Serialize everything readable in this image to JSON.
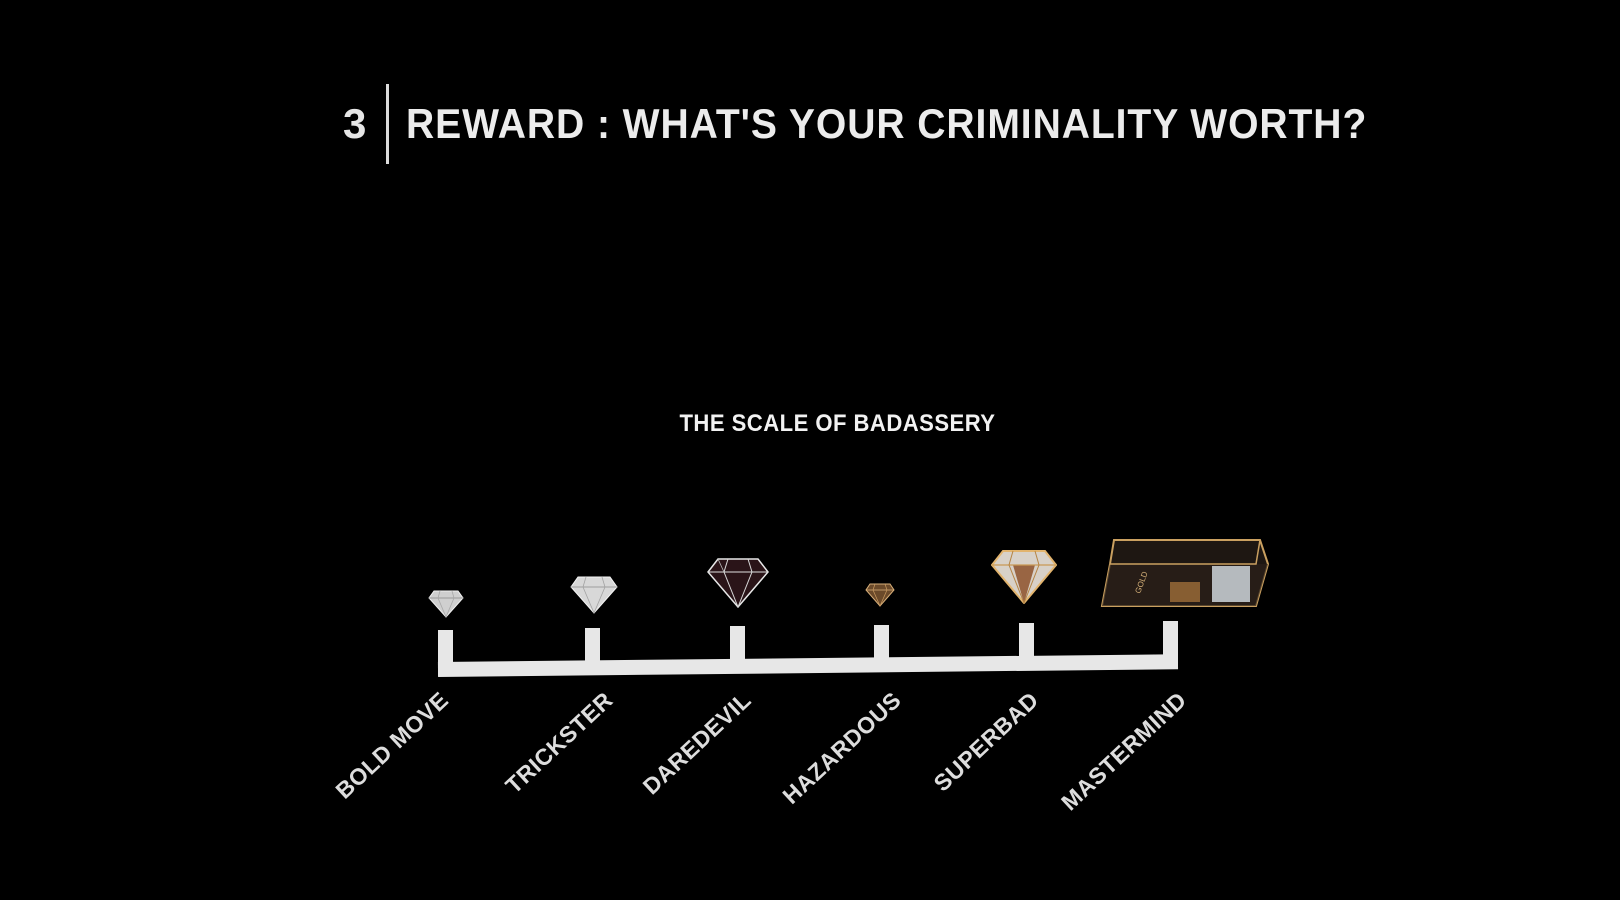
{
  "header": {
    "step_number": "3",
    "title": "REWARD : WHAT'S YOUR CRIMINALITY WORTH?"
  },
  "scale": {
    "title": "THE SCALE OF BADASSERY",
    "tiers": [
      {
        "label": "BOLD MOVE",
        "reward_icon": "small-silver-diamond-icon"
      },
      {
        "label": "TRICKSTER",
        "reward_icon": "silver-diamond-icon"
      },
      {
        "label": "DAREDEVIL",
        "reward_icon": "black-diamond-icon"
      },
      {
        "label": "HAZARDOUS",
        "reward_icon": "small-gold-diamond-icon"
      },
      {
        "label": "SUPERBAD",
        "reward_icon": "gold-diamond-icon"
      },
      {
        "label": "MASTERMIND",
        "reward_icon": "gold-bar-icon"
      }
    ]
  },
  "colors": {
    "background": "#000000",
    "text": "#ececec",
    "scale_bar": "#e7e7e7",
    "gold": "#c9a063"
  }
}
